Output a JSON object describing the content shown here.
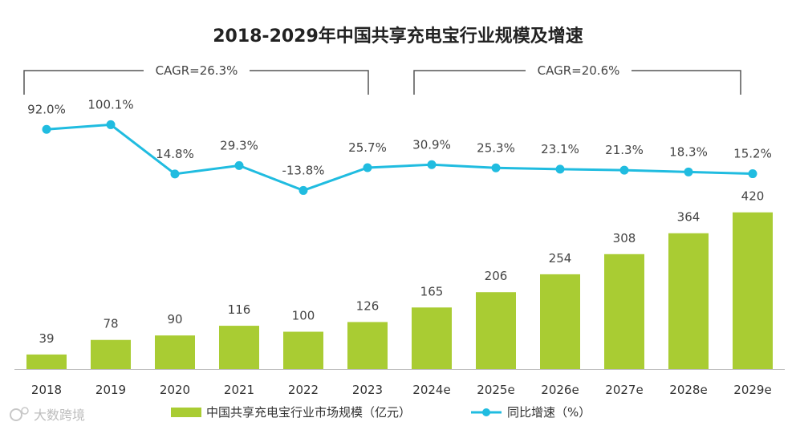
{
  "chart_data": {
    "type": "bar+line",
    "title": "2018-2029年中国共享充电宝行业规模及增速",
    "categories": [
      "2018",
      "2019",
      "2020",
      "2021",
      "2022",
      "2023",
      "2024e",
      "2025e",
      "2026e",
      "2027e",
      "2028e",
      "2029e"
    ],
    "series": [
      {
        "name": "中国共享充电宝行业市场规模（亿元）",
        "type": "bar",
        "values": [
          39,
          78,
          90,
          116,
          100,
          126,
          165,
          206,
          254,
          308,
          364,
          420
        ],
        "color": "#a9cc33"
      },
      {
        "name": "同比增速（%）",
        "type": "line",
        "values": [
          92.0,
          100.1,
          14.8,
          29.3,
          -13.8,
          25.7,
          30.9,
          25.3,
          23.1,
          21.3,
          18.3,
          15.2
        ],
        "labels": [
          "92.0%",
          "100.1%",
          "14.8%",
          "29.3%",
          "-13.8%",
          "25.7%",
          "30.9%",
          "25.3%",
          "23.1%",
          "21.3%",
          "18.3%",
          "15.2%"
        ],
        "color": "#20bce0"
      }
    ],
    "cagr_annotations": [
      {
        "label": "CAGR=26.3%",
        "from": "2018",
        "to": "2023"
      },
      {
        "label": "CAGR=20.6%",
        "from": "2024e",
        "to": "2029e"
      }
    ],
    "legend_position": "bottom-center"
  },
  "watermark": "大数跨境"
}
